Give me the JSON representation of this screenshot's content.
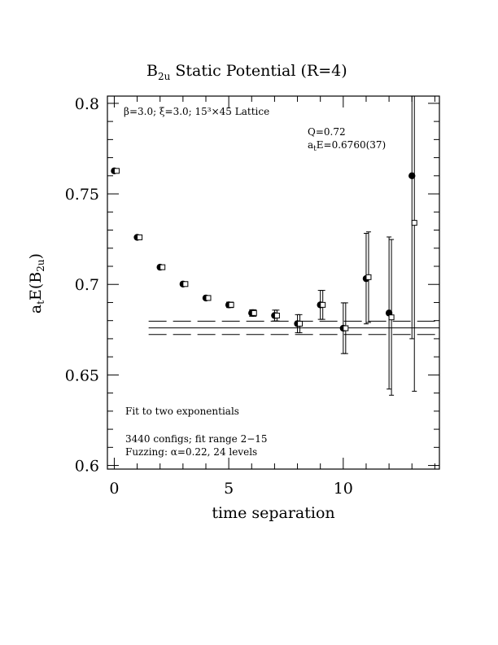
{
  "chart_data": {
    "type": "scatter",
    "title": "B_2u Static Potential (R=4)",
    "title_parts": {
      "main": "B",
      "sub": "2u",
      "rest": " Static Potential (R=4)"
    },
    "xlabel": "time separation",
    "ylabel": "a_tE(B_2u)",
    "ylabel_parts": {
      "a": "a",
      "a_sub": "t",
      "mid": "E(B",
      "b_sub": "2u",
      "end": ")"
    },
    "xlim": [
      -0.3,
      14.2
    ],
    "ylim": [
      0.598,
      0.804
    ],
    "xticks": [
      0,
      5,
      10
    ],
    "xtick_labels": [
      "0",
      "5",
      "10"
    ],
    "yticks": [
      0.6,
      0.65,
      0.7,
      0.75,
      0.8
    ],
    "ytick_labels": [
      "0.6",
      "0.65",
      "0.7",
      "0.75",
      "0.8"
    ],
    "annotations": {
      "params": "β=3.0; ξ=3.0; 15³×45 Lattice",
      "q_value": "Q=0.72",
      "energy_prefix": "a",
      "energy_sub": "t",
      "energy_rest": "E=0.6760(37)",
      "fit_label": "Fit to two exponentials",
      "configs": "3440 configs; fit range 2−15",
      "fuzzing": "Fuzzing: α=0.22, 24 levels"
    },
    "series": [
      {
        "marker": "filled-circle",
        "points": [
          {
            "x": 0,
            "y": 0.7627,
            "err": 0.001
          },
          {
            "x": 1,
            "y": 0.726,
            "err": 0.001
          },
          {
            "x": 2,
            "y": 0.7095,
            "err": 0.001
          },
          {
            "x": 3,
            "y": 0.7002,
            "err": 0.001
          },
          {
            "x": 4,
            "y": 0.6925,
            "err": 0.0012
          },
          {
            "x": 5,
            "y": 0.6887,
            "err": 0.0015
          },
          {
            "x": 6,
            "y": 0.6842,
            "err": 0.0018
          },
          {
            "x": 7,
            "y": 0.6828,
            "err": 0.003
          },
          {
            "x": 8,
            "y": 0.6783,
            "err": 0.005
          },
          {
            "x": 9,
            "y": 0.6887,
            "err": 0.008
          },
          {
            "x": 10,
            "y": 0.6758,
            "err": 0.014
          },
          {
            "x": 11,
            "y": 0.7032,
            "err": 0.025
          },
          {
            "x": 12,
            "y": 0.6842,
            "err": 0.042
          },
          {
            "x": 13,
            "y": 0.76,
            "err": 0.09
          }
        ]
      },
      {
        "marker": "open-square",
        "points": [
          {
            "x": 0,
            "y": 0.7627,
            "err": 0.001
          },
          {
            "x": 1,
            "y": 0.726,
            "err": 0.001
          },
          {
            "x": 2,
            "y": 0.7095,
            "err": 0.001
          },
          {
            "x": 3,
            "y": 0.7002,
            "err": 0.001
          },
          {
            "x": 4,
            "y": 0.6925,
            "err": 0.0012
          },
          {
            "x": 5,
            "y": 0.6887,
            "err": 0.0015
          },
          {
            "x": 6,
            "y": 0.6842,
            "err": 0.0018
          },
          {
            "x": 7,
            "y": 0.6828,
            "err": 0.003
          },
          {
            "x": 8,
            "y": 0.6783,
            "err": 0.005
          },
          {
            "x": 9,
            "y": 0.6887,
            "err": 0.008
          },
          {
            "x": 10,
            "y": 0.6758,
            "err": 0.014
          },
          {
            "x": 11,
            "y": 0.704,
            "err": 0.025
          },
          {
            "x": 12,
            "y": 0.6818,
            "err": 0.043
          },
          {
            "x": 13,
            "y": 0.734,
            "err": 0.093
          }
        ]
      }
    ],
    "fit": {
      "x_range": [
        1.5,
        14.2
      ],
      "center": 0.676,
      "upper": 0.6797,
      "lower": 0.6723,
      "center_style": "solid",
      "band_style": "dashed"
    },
    "legend": "none",
    "grid": false
  }
}
